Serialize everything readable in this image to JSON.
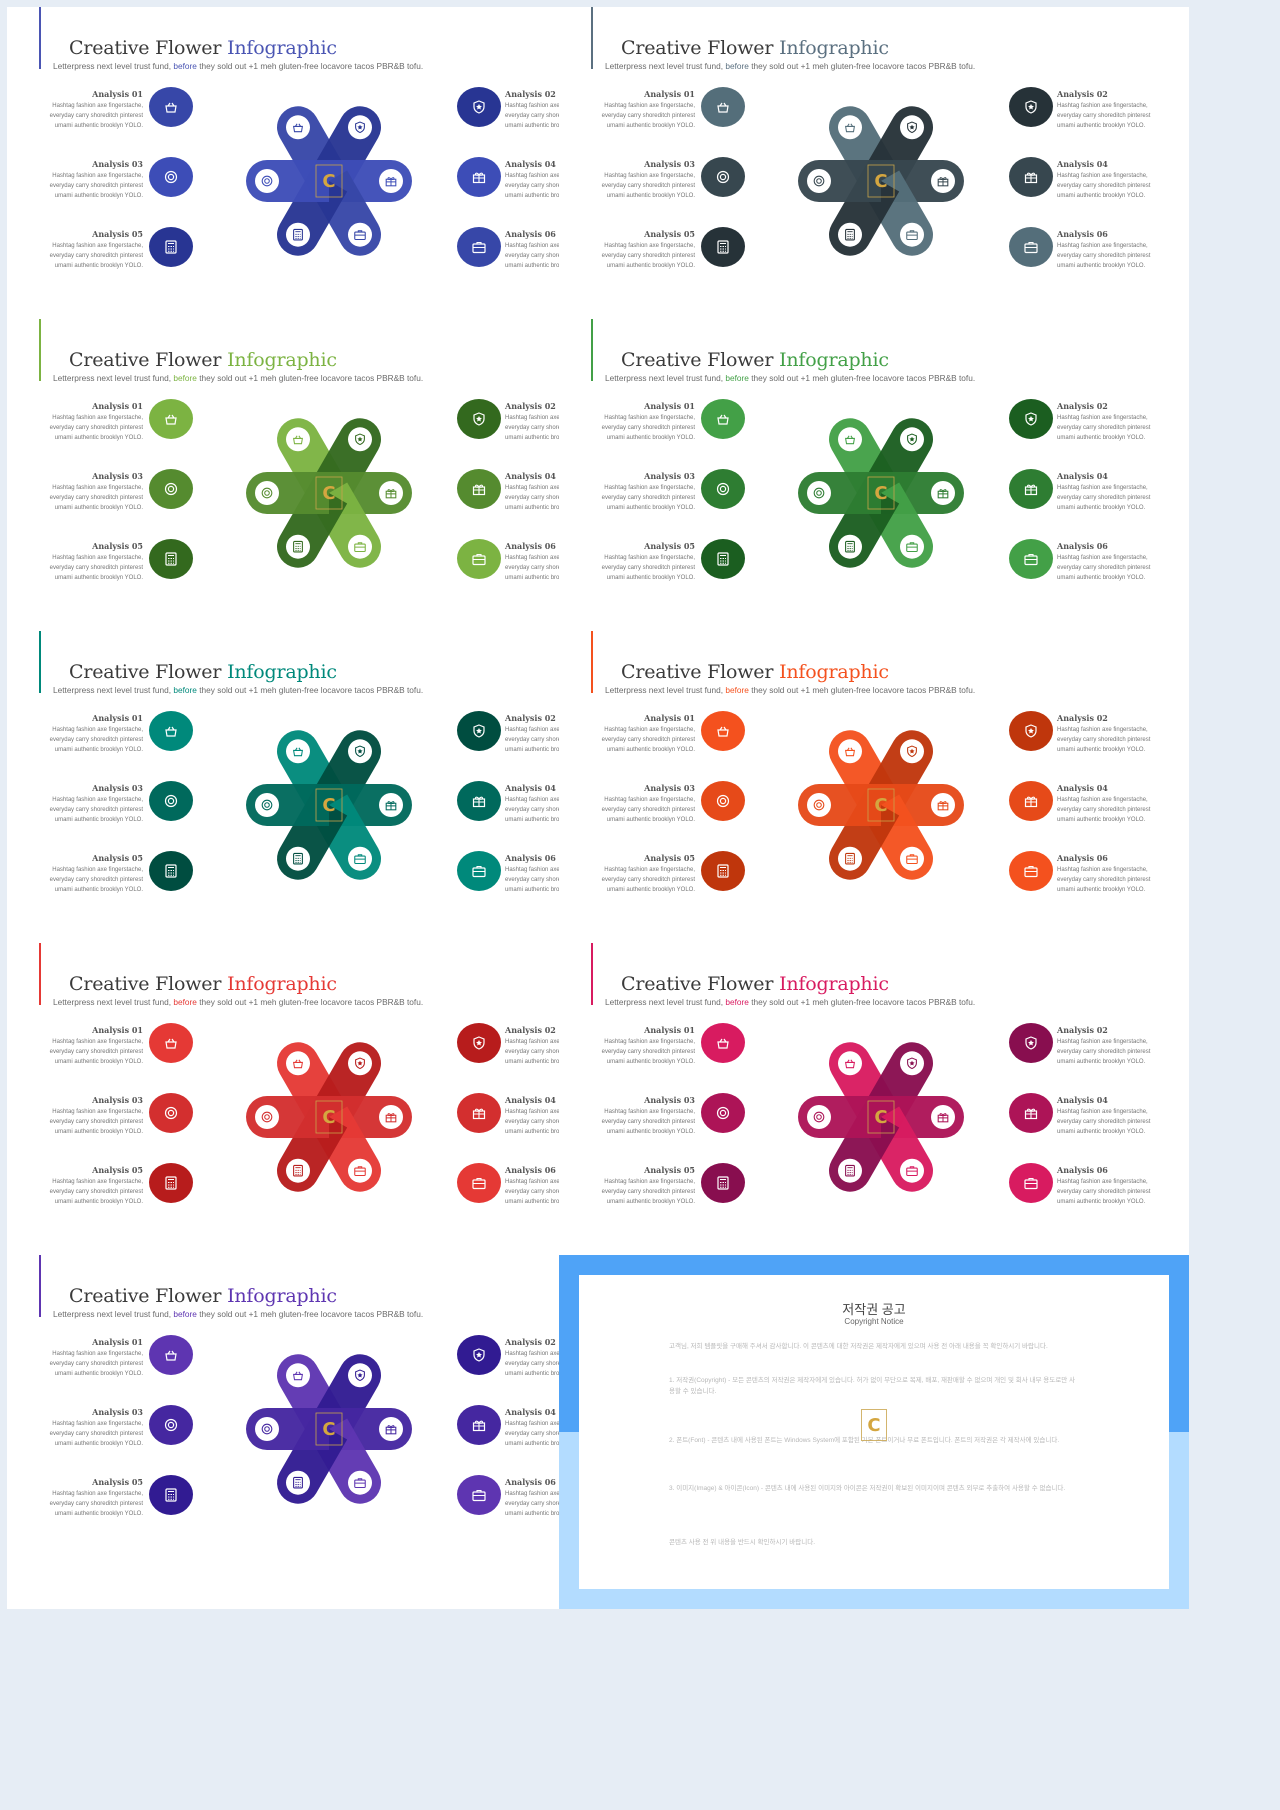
{
  "slide_common": {
    "title_main": "Creative Flower",
    "title_accent": "Infographic",
    "subtitle_pre": "Letterpress next level trust fund,",
    "subtitle_hl": "before",
    "subtitle_post": "they sold out +1 meh gluten-free locavore tacos PBR&B tofu.",
    "item_desc": "Hashtag fashion axe fingerstache, everyday carry shoreditch pinterest umami authentic brooklyn YOLO.",
    "items": [
      {
        "label": "Analysis 01",
        "icon": "basket-icon"
      },
      {
        "label": "Analysis 02",
        "icon": "star-badge-icon"
      },
      {
        "label": "Analysis 03",
        "icon": "lifebuoy-icon"
      },
      {
        "label": "Analysis 04",
        "icon": "gift-icon"
      },
      {
        "label": "Analysis 05",
        "icon": "calculator-icon"
      },
      {
        "label": "Analysis 06",
        "icon": "briefcase-icon"
      }
    ]
  },
  "themes": [
    {
      "name": "blue",
      "accent": "#4a55b3",
      "c1": "#3747a8",
      "c2": "#283593",
      "c3": "#3d4db7"
    },
    {
      "name": "slate",
      "accent": "#5b7080",
      "c1": "#546e7a",
      "c2": "#263238",
      "c3": "#37474f"
    },
    {
      "name": "lime",
      "accent": "#7cb342",
      "c1": "#7cb342",
      "c2": "#33691e",
      "c3": "#558b2f"
    },
    {
      "name": "green",
      "accent": "#43a047",
      "c1": "#43a047",
      "c2": "#1b5e20",
      "c3": "#2e7d32"
    },
    {
      "name": "teal",
      "accent": "#00897b",
      "c1": "#00897b",
      "c2": "#004d40",
      "c3": "#00695c"
    },
    {
      "name": "orange",
      "accent": "#f4511e",
      "c1": "#f4511e",
      "c2": "#bf360c",
      "c3": "#e64a19"
    },
    {
      "name": "red",
      "accent": "#e53935",
      "c1": "#e53935",
      "c2": "#b71c1c",
      "c3": "#d32f2f"
    },
    {
      "name": "pink",
      "accent": "#d81b60",
      "c1": "#d81b60",
      "c2": "#880e4f",
      "c3": "#ad1457"
    },
    {
      "name": "purple",
      "accent": "#5e35b1",
      "c1": "#5e35b1",
      "c2": "#311b92",
      "c3": "#4527a0"
    }
  ],
  "copyright": {
    "title": "저작권 공고",
    "subtitle": "Copyright Notice",
    "frame_color": "#4fa3f7",
    "frame_light": "#b3dcff",
    "p0": "고객님, 저희 템플릿을 구매해 주셔서 감사합니다. 이 콘텐츠에 대한 저작권은 제작자에게 있으며 사용 전 아래 내용을 꼭 확인하시기 바랍니다.",
    "p1": "1. 저작권(Copyright) - 모든 콘텐츠의 저작권은 제작자에게 있습니다. 허가 없이 무단으로 복제, 배포, 재판매할 수 없으며 개인 및 회사 내부 용도로만 사용할 수 있습니다.",
    "p2": "2. 폰트(Font) - 콘텐츠 내에 사용된 폰트는 Windows System에 포함된 기본 폰트이거나 무료 폰트입니다. 폰트의 저작권은 각 제작사에 있습니다.",
    "p3": "3. 이미지(Image) & 아이콘(Icon) - 콘텐츠 내에 사용된 이미지와 아이콘은 저작권이 확보된 이미지이며 콘텐츠 외부로 추출하여 사용할 수 없습니다.",
    "p4": "콘텐츠 사용 전 위 내용을 반드시 확인하시기 바랍니다."
  }
}
